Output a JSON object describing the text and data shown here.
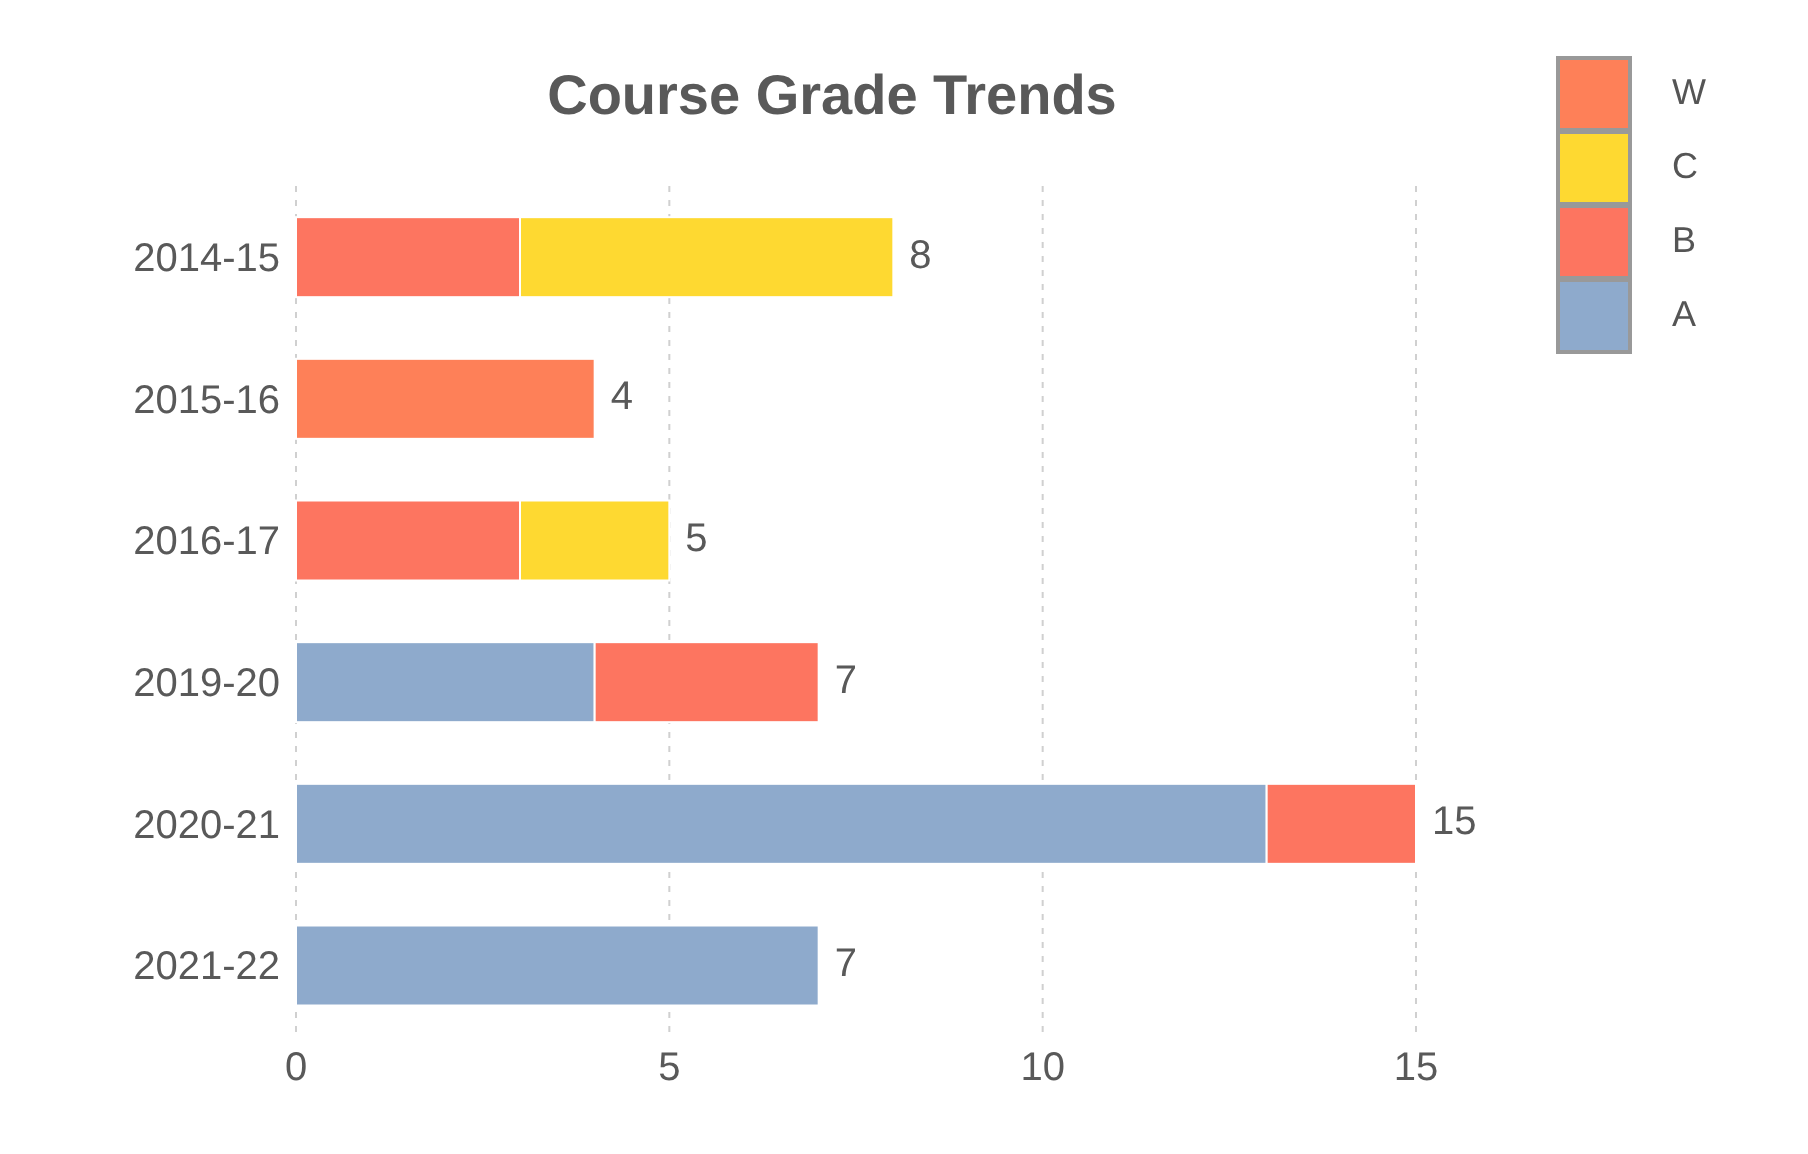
{
  "chart_data": {
    "type": "bar",
    "orientation": "horizontal",
    "stacked": true,
    "title": "Course Grade Trends",
    "categories": [
      "2014-15",
      "2015-16",
      "2016-17",
      "2019-20",
      "2020-21",
      "2021-22"
    ],
    "series": [
      {
        "name": "A",
        "color": "#8eaacc",
        "values": [
          null,
          null,
          null,
          4,
          13,
          7
        ]
      },
      {
        "name": "B",
        "color": "#fd7560",
        "values": [
          3,
          null,
          3,
          3,
          2,
          null
        ]
      },
      {
        "name": "C",
        "color": "#fed931",
        "values": [
          5,
          null,
          2,
          null,
          null,
          null
        ]
      },
      {
        "name": "W",
        "color": "#fe8058",
        "values": [
          null,
          4,
          null,
          null,
          null,
          null
        ]
      }
    ],
    "totals": [
      "8",
      "4",
      "5",
      "7",
      "15",
      "7"
    ],
    "xlim": [
      0,
      15
    ],
    "xticks": [
      0,
      5,
      10,
      15
    ],
    "grid": "x",
    "legend": "top right"
  }
}
